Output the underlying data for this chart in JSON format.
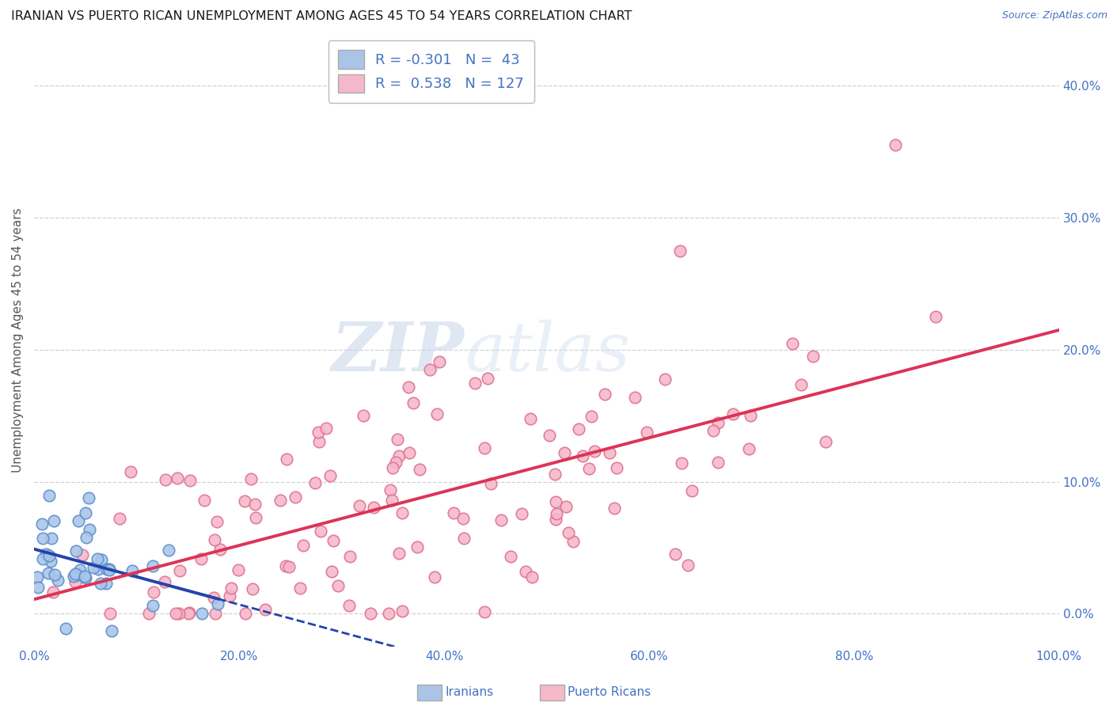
{
  "title": "IRANIAN VS PUERTO RICAN UNEMPLOYMENT AMONG AGES 45 TO 54 YEARS CORRELATION CHART",
  "source": "Source: ZipAtlas.com",
  "ylabel": "Unemployment Among Ages 45 to 54 years",
  "xlim": [
    0,
    1.0
  ],
  "ylim": [
    -0.025,
    0.44
  ],
  "xticks": [
    0.0,
    0.2,
    0.4,
    0.6,
    0.8,
    1.0
  ],
  "xticklabels": [
    "0.0%",
    "20.0%",
    "40.0%",
    "60.0%",
    "80.0%",
    "100.0%"
  ],
  "ytick_positions": [
    0.0,
    0.1,
    0.2,
    0.3,
    0.4
  ],
  "yticklabels_right": [
    "0.0%",
    "10.0%",
    "20.0%",
    "30.0%",
    "40.0%"
  ],
  "iranian_color": "#aac4e8",
  "iranian_edge": "#5a8fcc",
  "puerto_rican_color": "#f5b8cb",
  "puerto_rican_edge": "#e07090",
  "trend_iranian_color": "#2244aa",
  "trend_puerto_rican_color": "#dd3355",
  "legend_iranian_label": "R = -0.301   N =  43",
  "legend_puerto_rican_label": "R =  0.538   N = 127",
  "watermark_zip": "ZIP",
  "watermark_atlas": "atlas",
  "background_color": "#ffffff",
  "grid_color": "#cccccc",
  "iranian_R": -0.301,
  "iranian_N": 43,
  "puerto_rican_R": 0.538,
  "puerto_rican_N": 127,
  "tick_color": "#4472c4",
  "axis_label_color": "#555555"
}
